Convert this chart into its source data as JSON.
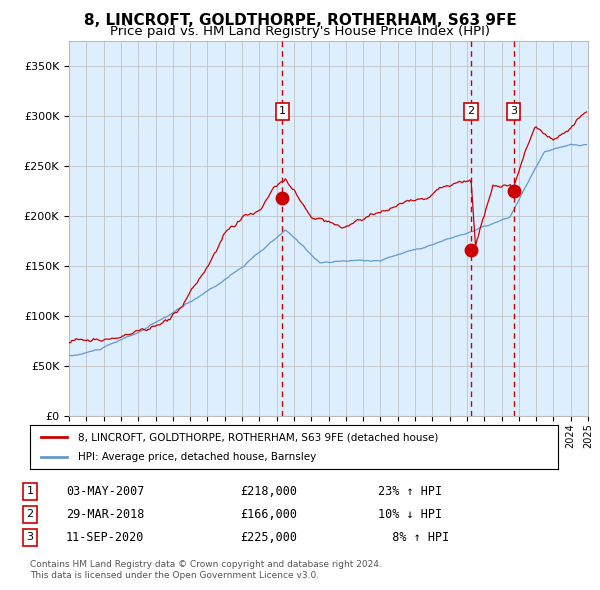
{
  "title": "8, LINCROFT, GOLDTHORPE, ROTHERHAM, S63 9FE",
  "subtitle": "Price paid vs. HM Land Registry's House Price Index (HPI)",
  "legend_line1": "8, LINCROFT, GOLDTHORPE, ROTHERHAM, S63 9FE (detached house)",
  "legend_line2": "HPI: Average price, detached house, Barnsley",
  "footer1": "Contains HM Land Registry data © Crown copyright and database right 2024.",
  "footer2": "This data is licensed under the Open Government Licence v3.0.",
  "transactions": [
    {
      "num": 1,
      "date": "03-MAY-2007",
      "price": 218000,
      "pct": "23%",
      "dir": "↑",
      "label": "1"
    },
    {
      "num": 2,
      "date": "29-MAR-2018",
      "price": 166000,
      "pct": "10%",
      "dir": "↓",
      "label": "2"
    },
    {
      "num": 3,
      "date": "11-SEP-2020",
      "price": 225000,
      "pct": "8%",
      "dir": "↑",
      "label": "3"
    }
  ],
  "transaction_dates_decimal": [
    2007.34,
    2018.24,
    2020.7
  ],
  "transaction_prices": [
    218000,
    166000,
    225000
  ],
  "red_color": "#cc0000",
  "blue_color": "#6699cc",
  "background_color": "#ddeeff",
  "grid_color": "#bbbbbb",
  "ylim": [
    0,
    375000
  ],
  "yticks": [
    0,
    50000,
    100000,
    150000,
    200000,
    250000,
    300000,
    350000
  ],
  "title_fontsize": 11,
  "subtitle_fontsize": 9.5,
  "axis_fontsize": 8
}
